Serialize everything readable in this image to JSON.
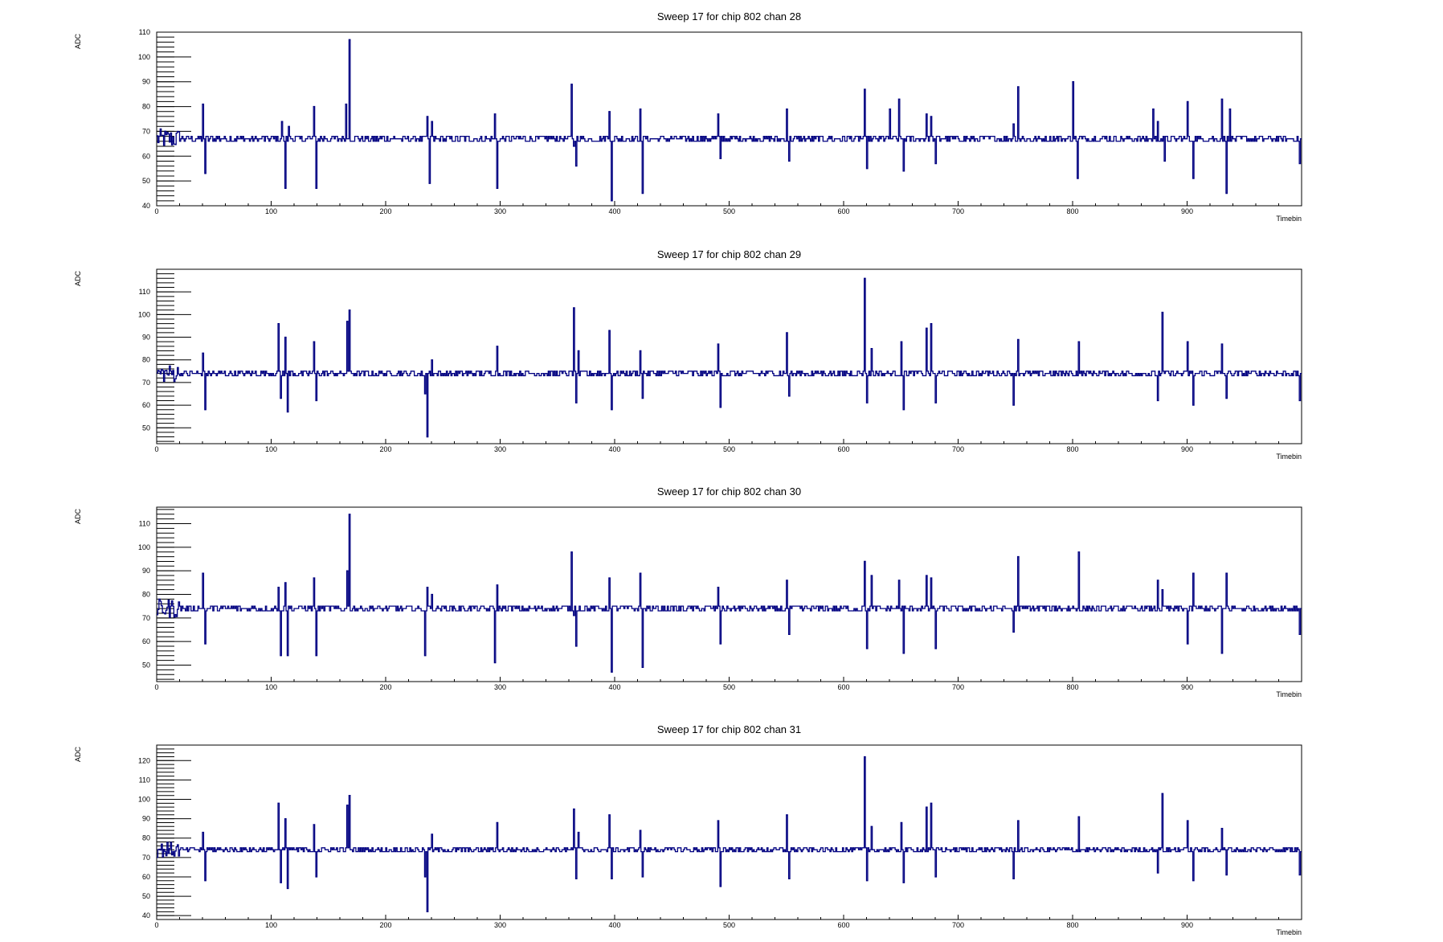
{
  "colors": {
    "trace": "#000080",
    "axis": "#000000",
    "background": "#ffffff"
  },
  "x_axis": {
    "label": "Timebin",
    "ticks": [
      "0",
      "100",
      "200",
      "300",
      "400",
      "500",
      "600",
      "700",
      "800",
      "900"
    ],
    "range": [
      0,
      1000
    ]
  },
  "y_axis": {
    "label": "ADC"
  },
  "chart_data": [
    {
      "type": "line",
      "style": "step",
      "title": "Sweep 17 for chip 802 chan 28",
      "xlabel": "Timebin",
      "ylabel": "ADC",
      "xlim": [
        0,
        1000
      ],
      "ylim": [
        40,
        110
      ],
      "yticks": [
        "40",
        "50",
        "60",
        "70",
        "80",
        "90",
        "100",
        "110"
      ],
      "baseline": 67,
      "series": [
        {
          "x": [
            40,
            42,
            109,
            112,
            115,
            137,
            139,
            165,
            168,
            236,
            238,
            240,
            295,
            297,
            362,
            364,
            366,
            395,
            397,
            422,
            424,
            490,
            492,
            550,
            552,
            618,
            620,
            640,
            648,
            652,
            672,
            676,
            680,
            748,
            752,
            800,
            804,
            870,
            874,
            880,
            900,
            905,
            930,
            934,
            937,
            998
          ],
          "y": [
            81,
            53,
            74,
            47,
            72,
            80,
            47,
            81,
            107,
            76,
            49,
            74,
            77,
            47,
            89,
            64,
            56,
            78,
            42,
            79,
            45,
            77,
            59,
            79,
            58,
            87,
            55,
            79,
            83,
            54,
            77,
            76,
            57,
            73,
            88,
            90,
            51,
            79,
            74,
            58,
            82,
            51,
            83,
            45,
            79,
            57
          ]
        }
      ]
    },
    {
      "type": "line",
      "style": "step",
      "title": "Sweep 17 for chip 802 chan 29",
      "xlabel": "Timebin",
      "ylabel": "ADC",
      "xlim": [
        0,
        1000
      ],
      "ylim": [
        43,
        120
      ],
      "yticks": [
        "50",
        "60",
        "70",
        "80",
        "90",
        "100",
        "110"
      ],
      "baseline": 74,
      "series": [
        {
          "x": [
            40,
            42,
            106,
            108,
            112,
            114,
            137,
            139,
            166,
            168,
            234,
            236,
            240,
            297,
            364,
            366,
            368,
            395,
            397,
            422,
            424,
            490,
            492,
            550,
            552,
            618,
            620,
            624,
            650,
            652,
            672,
            676,
            680,
            748,
            752,
            805,
            874,
            878,
            900,
            905,
            930,
            934,
            998
          ],
          "y": [
            83,
            58,
            96,
            63,
            90,
            57,
            88,
            62,
            97,
            102,
            65,
            46,
            80,
            86,
            103,
            61,
            84,
            93,
            58,
            84,
            63,
            87,
            59,
            92,
            64,
            116,
            61,
            85,
            88,
            58,
            94,
            96,
            61,
            60,
            89,
            88,
            62,
            101,
            88,
            60,
            87,
            63,
            62
          ]
        }
      ]
    },
    {
      "type": "line",
      "style": "step",
      "title": "Sweep 17 for chip 802 chan 30",
      "xlabel": "Timebin",
      "ylabel": "ADC",
      "xlim": [
        0,
        1000
      ],
      "ylim": [
        43,
        117
      ],
      "yticks": [
        "50",
        "60",
        "70",
        "80",
        "90",
        "100",
        "110"
      ],
      "baseline": 74,
      "series": [
        {
          "x": [
            40,
            42,
            106,
            108,
            112,
            114,
            137,
            139,
            166,
            168,
            234,
            236,
            240,
            295,
            297,
            362,
            364,
            366,
            395,
            397,
            422,
            424,
            490,
            492,
            550,
            552,
            618,
            620,
            624,
            648,
            652,
            672,
            676,
            680,
            748,
            752,
            805,
            874,
            878,
            900,
            905,
            930,
            934,
            998
          ],
          "y": [
            89,
            59,
            83,
            54,
            85,
            54,
            87,
            54,
            90,
            114,
            54,
            83,
            80,
            51,
            84,
            98,
            71,
            58,
            87,
            47,
            89,
            49,
            83,
            59,
            86,
            63,
            94,
            57,
            88,
            86,
            55,
            88,
            87,
            57,
            64,
            96,
            98,
            86,
            82,
            59,
            89,
            55,
            89,
            63
          ]
        }
      ]
    },
    {
      "type": "line",
      "style": "step",
      "title": "Sweep 17 for chip 802 chan 31",
      "xlabel": "Timebin",
      "ylabel": "ADC",
      "xlim": [
        0,
        1000
      ],
      "ylim": [
        38,
        128
      ],
      "yticks": [
        "40",
        "50",
        "60",
        "70",
        "80",
        "90",
        "100",
        "110",
        "120"
      ],
      "baseline": 74,
      "series": [
        {
          "x": [
            40,
            42,
            106,
            108,
            112,
            114,
            137,
            139,
            166,
            168,
            234,
            236,
            240,
            297,
            364,
            366,
            368,
            395,
            397,
            422,
            424,
            490,
            492,
            550,
            552,
            618,
            620,
            624,
            650,
            652,
            672,
            676,
            680,
            748,
            752,
            805,
            874,
            878,
            900,
            905,
            930,
            934,
            998
          ],
          "y": [
            83,
            58,
            98,
            57,
            90,
            54,
            87,
            60,
            97,
            102,
            60,
            42,
            82,
            88,
            95,
            59,
            83,
            92,
            59,
            84,
            60,
            89,
            55,
            92,
            59,
            122,
            58,
            86,
            88,
            57,
            96,
            98,
            60,
            59,
            89,
            91,
            62,
            103,
            89,
            58,
            85,
            61,
            61
          ]
        }
      ]
    }
  ]
}
